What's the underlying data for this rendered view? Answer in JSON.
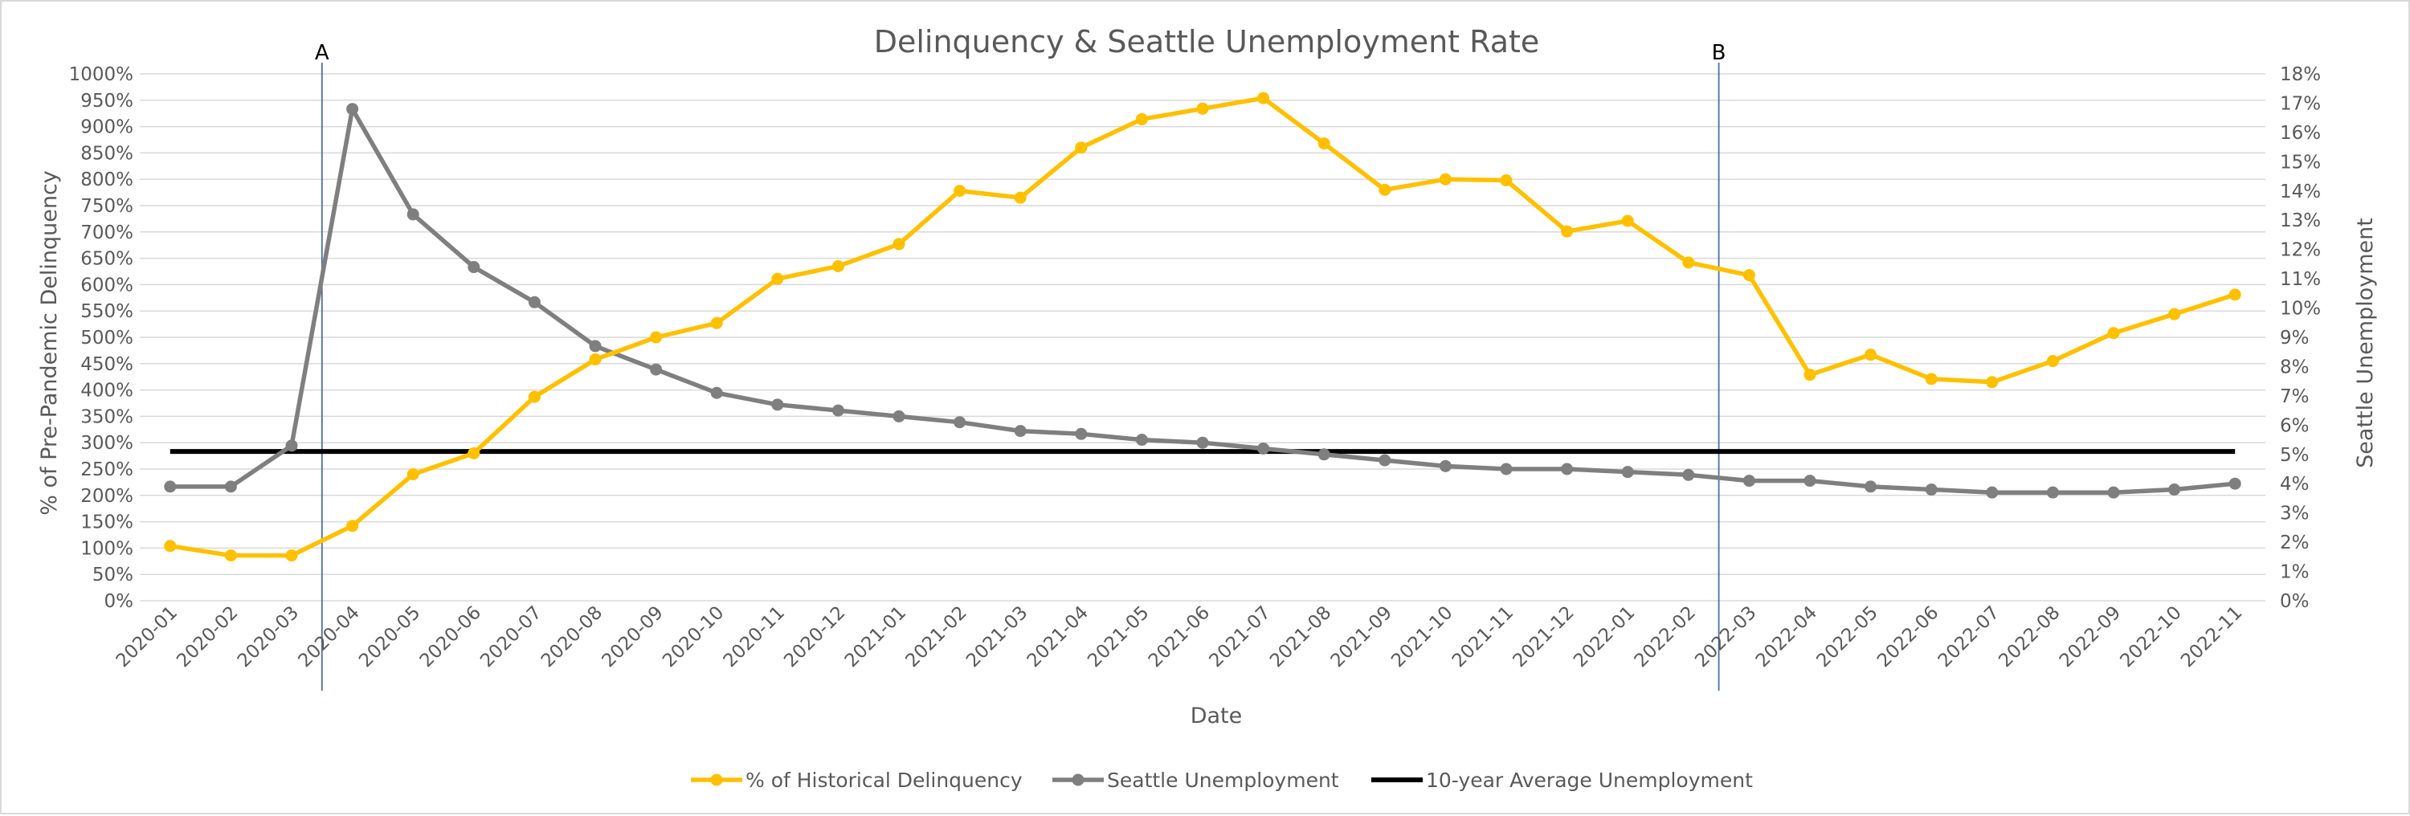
{
  "chart_data": {
    "type": "line",
    "title": "Delinquency & Seattle Unemployment Rate",
    "xlabel": "Date",
    "ylabel_left": "% of Pre-Pandemic Delinquency",
    "ylabel_right": "Seattle Unemployment",
    "categories": [
      "2020-01",
      "2020-02",
      "2020-03",
      "2020-04",
      "2020-05",
      "2020-06",
      "2020-07",
      "2020-08",
      "2020-09",
      "2020-10",
      "2020-11",
      "2020-12",
      "2021-01",
      "2021-02",
      "2021-03",
      "2021-04",
      "2021-05",
      "2021-06",
      "2021-07",
      "2021-08",
      "2021-09",
      "2021-10",
      "2021-11",
      "2021-12",
      "2022-01",
      "2022-02",
      "2022-03",
      "2022-04",
      "2022-05",
      "2022-06",
      "2022-07",
      "2022-08",
      "2022-09",
      "2022-10",
      "2022-11"
    ],
    "y_left": {
      "range": [
        0,
        1000
      ],
      "step": 50,
      "tick_labels": [
        "0%",
        "50%",
        "100%",
        "150%",
        "200%",
        "250%",
        "300%",
        "350%",
        "400%",
        "450%",
        "500%",
        "550%",
        "600%",
        "650%",
        "700%",
        "750%",
        "800%",
        "850%",
        "900%",
        "950%",
        "1000%"
      ]
    },
    "y_right": {
      "range": [
        0,
        18
      ],
      "step": 1,
      "tick_labels": [
        "0%",
        "1%",
        "2%",
        "3%",
        "4%",
        "5%",
        "6%",
        "7%",
        "8%",
        "9%",
        "10%",
        "11%",
        "12%",
        "13%",
        "14%",
        "15%",
        "16%",
        "17%",
        "18%"
      ]
    },
    "series": [
      {
        "name": "% of Historical Delinquency",
        "axis": "left",
        "color": "#ffc000",
        "marker": "circle",
        "values": [
          104,
          86,
          86,
          142,
          240,
          280,
          387,
          458,
          500,
          527,
          611,
          635,
          677,
          778,
          765,
          860,
          914,
          934,
          954,
          868,
          780,
          800,
          798,
          701,
          721,
          642,
          618,
          429,
          467,
          421,
          415,
          455,
          508,
          544,
          581
        ]
      },
      {
        "name": "Seattle Unemployment",
        "axis": "right",
        "color": "#7f7f7f",
        "marker": "circle",
        "values": [
          3.9,
          3.9,
          5.3,
          16.8,
          13.2,
          11.4,
          10.2,
          8.7,
          7.9,
          7.1,
          6.7,
          6.5,
          6.3,
          6.1,
          5.8,
          5.7,
          5.5,
          5.4,
          5.2,
          5.0,
          4.8,
          4.6,
          4.5,
          4.5,
          4.4,
          4.3,
          4.1,
          4.1,
          3.9,
          3.8,
          3.7,
          3.7,
          3.7,
          3.8,
          4.0
        ]
      },
      {
        "name": "10-year Average Unemployment",
        "axis": "right",
        "color": "#000000",
        "marker": "none",
        "values": [
          5.1,
          5.1,
          5.1,
          5.1,
          5.1,
          5.1,
          5.1,
          5.1,
          5.1,
          5.1,
          5.1,
          5.1,
          5.1,
          5.1,
          5.1,
          5.1,
          5.1,
          5.1,
          5.1,
          5.1,
          5.1,
          5.1,
          5.1,
          5.1,
          5.1,
          5.1,
          5.1,
          5.1,
          5.1,
          5.1,
          5.1,
          5.1,
          5.1,
          5.1,
          5.1
        ]
      }
    ],
    "annotations": [
      {
        "label": "A",
        "between": [
          "2020-03",
          "2020-04"
        ],
        "color": "#4a6fa5"
      },
      {
        "label": "B",
        "between": [
          "2022-02",
          "2022-03"
        ],
        "color": "#4a6fa5"
      }
    ],
    "grid": true,
    "legend": "bottom"
  }
}
